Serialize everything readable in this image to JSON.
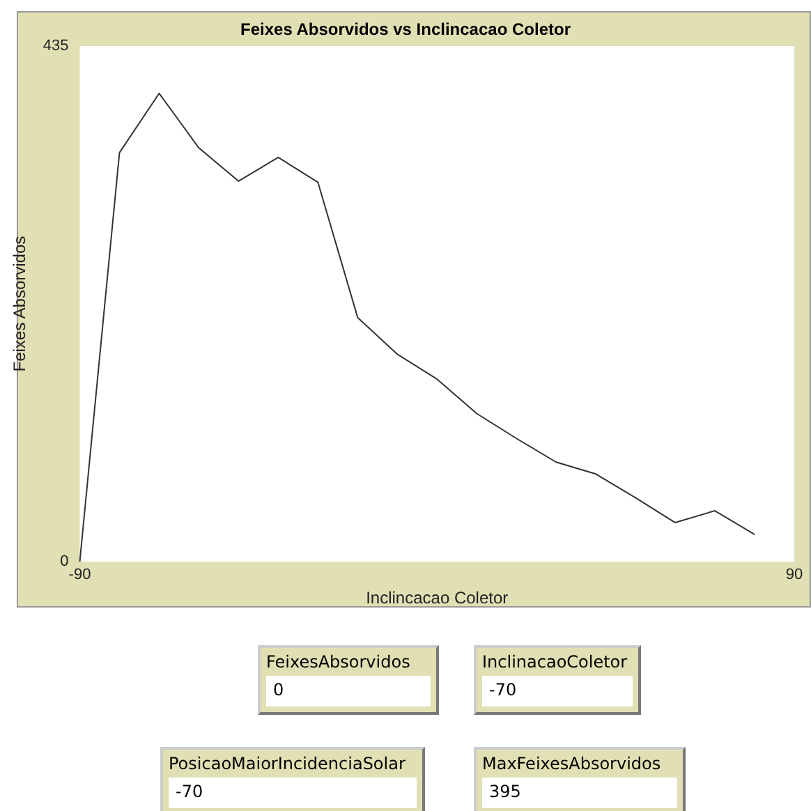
{
  "chart_data": [
    {
      "type": "line",
      "title": "Feixes Absorvidos vs Inclincacao Coletor",
      "xlabel": "Inclincacao Coletor",
      "ylabel": "Feixes Absorvidos",
      "x": [
        -90,
        -80,
        -70,
        -60,
        -50,
        -40,
        -30,
        -20,
        -10,
        0,
        10,
        20,
        30,
        40,
        50,
        60,
        70,
        80
      ],
      "series": [
        {
          "color": "#333333",
          "values": [
            0,
            345,
            395,
            349,
            321,
            341,
            320,
            206,
            175,
            154,
            125,
            104,
            84,
            74,
            54,
            33,
            43,
            23
          ]
        }
      ],
      "xlim": [
        -90,
        90
      ],
      "xticks": [
        -90,
        90
      ],
      "ylim": [
        0,
        435
      ],
      "yticks": [
        0,
        435
      ]
    },
    {
      "type": "other",
      "annotations": [
        "FeixesAbsorvidos",
        "0",
        "InclinacaoColetor",
        "-70",
        "PosicaoMaiorIncidenciaSolar",
        "-70",
        "MaxFeixesAbsorvidos",
        "395"
      ]
    }
  ]
}
